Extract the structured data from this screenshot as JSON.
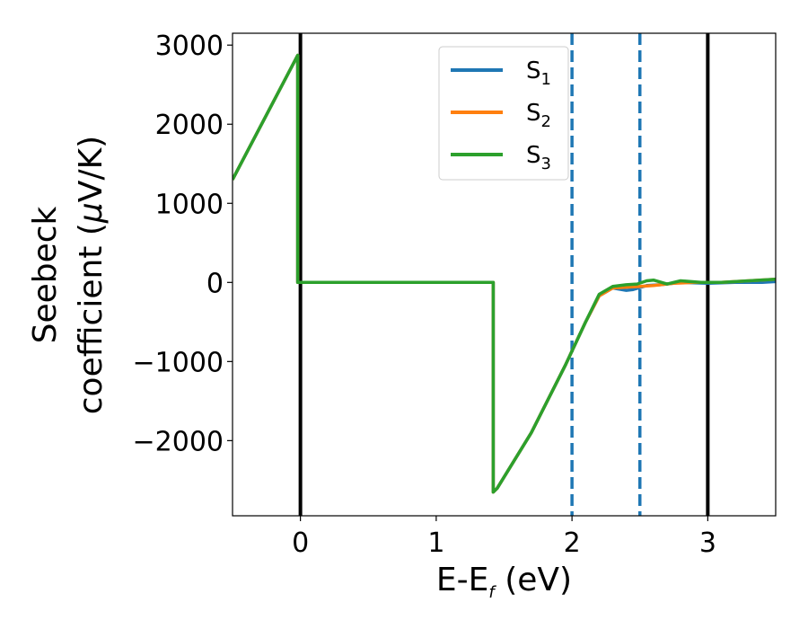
{
  "chart_data": {
    "type": "line",
    "xlabel": {
      "main": "E-E",
      "sub": "f",
      "unit": " (eV)"
    },
    "ylabel": {
      "line1": "Seebeck",
      "line2": "coefficient  (",
      "mu": "μ",
      "unit": "V/K)"
    },
    "xlim": [
      -0.5,
      3.5
    ],
    "ylim": [
      -2950,
      3150
    ],
    "xticks": [
      0,
      1,
      2,
      3
    ],
    "xtick_labels": [
      "0",
      "1",
      "2",
      "3"
    ],
    "yticks": [
      -2000,
      -1000,
      0,
      1000,
      2000,
      3000
    ],
    "ytick_labels": [
      "−2000",
      "−1000",
      "0",
      "1000",
      "2000",
      "3000"
    ],
    "grid": false,
    "legend_position": "upper-center",
    "vlines": [
      {
        "x": 0,
        "style": "solid",
        "color": "#000000"
      },
      {
        "x": 3,
        "style": "solid",
        "color": "#000000"
      },
      {
        "x": 2,
        "style": "dashed",
        "color": "#1f77b4"
      },
      {
        "x": 2.5,
        "style": "dashed",
        "color": "#1f77b4"
      }
    ],
    "series": [
      {
        "name": "S",
        "sub": "1",
        "color": "#1f77b4",
        "x": [
          -0.5,
          -0.02,
          -0.02,
          1.42,
          1.42,
          1.45,
          1.7,
          1.95,
          2.1,
          2.2,
          2.3,
          2.4,
          2.45,
          2.55,
          2.65,
          2.8,
          3.0,
          3.2,
          3.4,
          3.5
        ],
        "y": [
          1300,
          2870,
          0,
          0,
          -2650,
          -2600,
          -1900,
          -1050,
          -500,
          -170,
          -70,
          -100,
          -90,
          -40,
          -30,
          0,
          -10,
          0,
          0,
          10
        ]
      },
      {
        "name": "S",
        "sub": "2",
        "color": "#ff7f0e",
        "x": [
          -0.5,
          -0.02,
          -0.02,
          1.42,
          1.42,
          1.45,
          1.7,
          1.95,
          2.1,
          2.2,
          2.3,
          2.4,
          2.5,
          2.6,
          2.75,
          2.9,
          3.1,
          3.3,
          3.5
        ],
        "y": [
          1300,
          2870,
          0,
          0,
          -2650,
          -2600,
          -1900,
          -1050,
          -500,
          -170,
          -70,
          -60,
          -50,
          -40,
          -10,
          0,
          0,
          20,
          40
        ]
      },
      {
        "name": "S",
        "sub": "3",
        "color": "#2ca02c",
        "x": [
          -0.5,
          -0.02,
          -0.02,
          1.42,
          1.42,
          1.45,
          1.7,
          1.95,
          2.1,
          2.2,
          2.3,
          2.4,
          2.48,
          2.55,
          2.6,
          2.7,
          2.8,
          2.95,
          3.1,
          3.3,
          3.5
        ],
        "y": [
          1300,
          2870,
          0,
          0,
          -2650,
          -2600,
          -1900,
          -1050,
          -500,
          -150,
          -50,
          -30,
          -20,
          20,
          30,
          -20,
          20,
          0,
          0,
          20,
          40
        ]
      }
    ]
  }
}
